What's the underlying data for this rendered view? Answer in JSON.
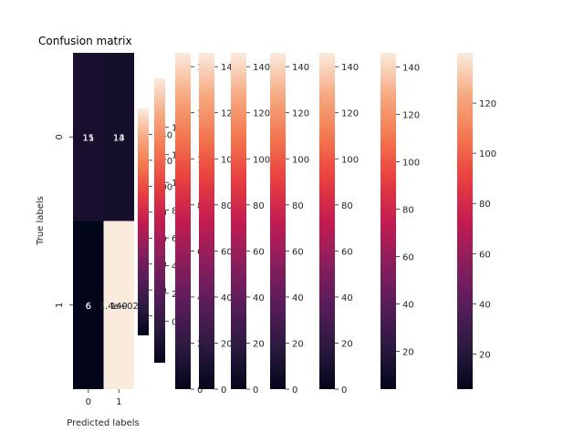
{
  "chart_data": {
    "type": "heatmap",
    "title": "Confusion matrix",
    "xlabel": "Predicted labels",
    "ylabel": "True labels",
    "x_categories": [
      "0",
      "1"
    ],
    "y_categories": [
      "0",
      "1"
    ],
    "matrix": [
      [
        15,
        14
      ],
      [
        6,
        140
      ]
    ],
    "annotations_overlap": [
      [
        "11",
        "13"
      ],
      [
        "6",
        "1.4e+02"
      ]
    ],
    "colormap": "rocket",
    "colorbars": [
      {
        "range": [
          0,
          146
        ],
        "ticks": [
          0,
          20,
          40,
          60,
          80,
          100,
          120,
          140
        ]
      },
      {
        "range": [
          -15,
          160
        ],
        "ticks": [
          0,
          20,
          40,
          60,
          80,
          100,
          120,
          140
        ]
      },
      {
        "range": [
          -30,
          175
        ],
        "ticks": [
          0,
          20,
          40,
          60,
          80,
          100,
          120,
          140
        ]
      },
      {
        "range": [
          -8,
          150
        ],
        "ticks": [
          0,
          20,
          40,
          60,
          80,
          100,
          120,
          140
        ]
      },
      {
        "range": [
          0,
          146
        ],
        "ticks": [
          0,
          20,
          40,
          60,
          80,
          100,
          120,
          140
        ]
      },
      {
        "range": [
          0,
          146
        ],
        "ticks": [
          0,
          20,
          40,
          60,
          80,
          100,
          120,
          140
        ]
      },
      {
        "range": [
          0,
          146
        ],
        "ticks": [
          0,
          20,
          40,
          60,
          80,
          100,
          120,
          140
        ]
      },
      {
        "range": [
          0,
          146
        ],
        "ticks": [
          0,
          20,
          40,
          60,
          80,
          100,
          120,
          140
        ]
      },
      {
        "range": [
          4,
          146
        ],
        "ticks": [
          20,
          40,
          60,
          80,
          100,
          120,
          140
        ]
      },
      {
        "range": [
          6,
          140
        ],
        "ticks": [
          20,
          40,
          60,
          80,
          100,
          120
        ]
      }
    ]
  }
}
